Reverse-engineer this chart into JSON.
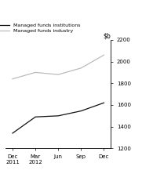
{
  "title": "",
  "x_labels": [
    "Dec\n2011",
    "Mar\n2012",
    "Jun",
    "Sep",
    "Dec"
  ],
  "x_positions": [
    0,
    1,
    2,
    3,
    4
  ],
  "institutions": [
    1340,
    1490,
    1500,
    1545,
    1620
  ],
  "industry": [
    1840,
    1900,
    1880,
    1940,
    2060
  ],
  "ylim": [
    1200,
    2200
  ],
  "yticks": [
    1200,
    1400,
    1600,
    1800,
    2000,
    2200
  ],
  "line_color_institutions": "#111111",
  "line_color_industry": "#bbbbbb",
  "legend_institutions": "Managed funds institutions",
  "legend_industry": "Managed funds industry",
  "bg_color": "#ffffff",
  "figwidth": 1.81,
  "figheight": 2.31,
  "dpi": 100
}
